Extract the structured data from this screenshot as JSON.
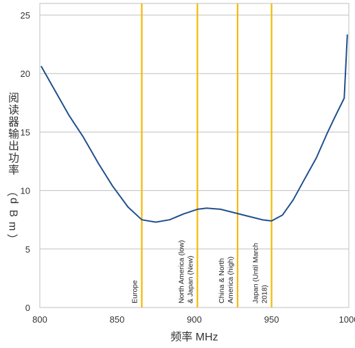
{
  "chart_data": {
    "type": "line",
    "xlabel": "频率 MHz",
    "ylabel": "阅读器输出功率（dBm）",
    "xlim": [
      800,
      1000
    ],
    "ylim": [
      0,
      26
    ],
    "x_ticks": [
      800,
      850,
      900,
      950,
      1000
    ],
    "y_ticks": [
      0,
      5,
      10,
      15,
      20,
      25
    ],
    "grid": "horizontal",
    "series": [
      {
        "color": "#1f4e8c",
        "points": [
          [
            801,
            20.6
          ],
          [
            810,
            18.5
          ],
          [
            819,
            16.4
          ],
          [
            828,
            14.6
          ],
          [
            838,
            12.3
          ],
          [
            847,
            10.4
          ],
          [
            857,
            8.6
          ],
          [
            866,
            7.5
          ],
          [
            875,
            7.3
          ],
          [
            884,
            7.5
          ],
          [
            893,
            8.0
          ],
          [
            902,
            8.4
          ],
          [
            908,
            8.5
          ],
          [
            917,
            8.4
          ],
          [
            926,
            8.1
          ],
          [
            935,
            7.8
          ],
          [
            944,
            7.5
          ],
          [
            950,
            7.4
          ],
          [
            957,
            7.9
          ],
          [
            964,
            9.2
          ],
          [
            971,
            10.9
          ],
          [
            979,
            12.8
          ],
          [
            986,
            14.9
          ],
          [
            991,
            16.3
          ],
          [
            997,
            17.9
          ],
          [
            999,
            23.3
          ]
        ]
      }
    ],
    "reference_lines": {
      "color": "#f5b800",
      "lines": [
        {
          "x": 866,
          "label": "Europe"
        },
        {
          "x": 902,
          "label": "North America (low) & Japan (New)"
        },
        {
          "x": 928,
          "label": "China & North America (high)"
        },
        {
          "x": 950,
          "label": "Japan (Until March 2018)"
        }
      ]
    }
  }
}
